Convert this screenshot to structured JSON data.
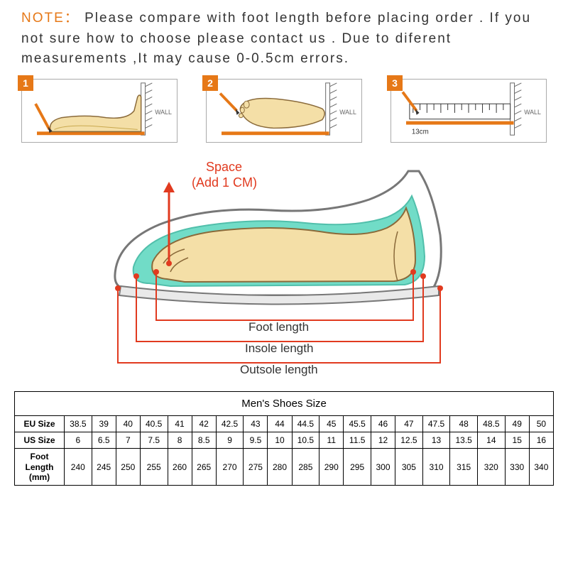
{
  "note": {
    "label": "NOTE：",
    "text": "Please compare with foot length before placing order . If you not sure how to choose please contact us . Due to diferent measurements ,It may cause 0-0.5cm errors.",
    "label_color": "#e67817"
  },
  "steps": {
    "wall_label": "WALL",
    "ruler_value": "13cm",
    "badge_bg": "#e67817",
    "foot_fill": "#f4dfa7",
    "floor_color": "#e67817",
    "wall_hatch": "#666666"
  },
  "diagram": {
    "space_label": "Space",
    "space_sub": "(Add 1 CM)",
    "foot_length_label": "Foot length",
    "insole_length_label": "Insole length",
    "outsole_length_label": "Outsole length",
    "accent_color": "#e13a1f",
    "insole_color": "#62d9c2",
    "shoe_outline": "#777777",
    "foot_fill": "#f4dfa7",
    "foot_stroke": "#8a6a3a"
  },
  "table": {
    "title": "Men's Shoes Size",
    "rows": [
      {
        "label": "EU Size",
        "cells": [
          "38.5",
          "39",
          "40",
          "40.5",
          "41",
          "42",
          "42.5",
          "43",
          "44",
          "44.5",
          "45",
          "45.5",
          "46",
          "47",
          "47.5",
          "48",
          "48.5",
          "49",
          "50"
        ]
      },
      {
        "label": "US Size",
        "cells": [
          "6",
          "6.5",
          "7",
          "7.5",
          "8",
          "8.5",
          "9",
          "9.5",
          "10",
          "10.5",
          "11",
          "11.5",
          "12",
          "12.5",
          "13",
          "13.5",
          "14",
          "15",
          "16"
        ]
      },
      {
        "label": "Foot Length (mm)",
        "cells": [
          "240",
          "245",
          "250",
          "255",
          "260",
          "265",
          "270",
          "275",
          "280",
          "285",
          "290",
          "295",
          "300",
          "305",
          "310",
          "315",
          "320",
          "330",
          "340"
        ]
      }
    ]
  }
}
